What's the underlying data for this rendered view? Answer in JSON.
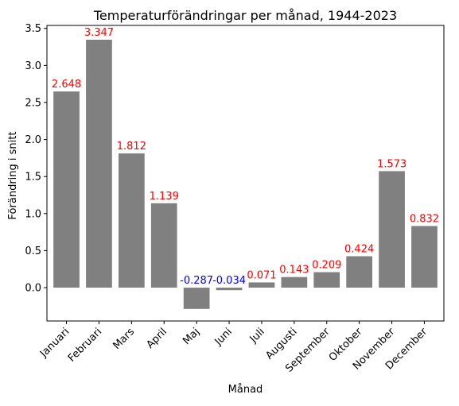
{
  "chart_data": {
    "type": "bar",
    "title": "Temperaturförändringar per månad, 1944-2023",
    "xlabel": "Månad",
    "ylabel": "Förändring i snitt",
    "categories": [
      "Januari",
      "Februari",
      "Mars",
      "April",
      "Maj",
      "Juni",
      "Juli",
      "Augusti",
      "September",
      "Oktober",
      "November",
      "December"
    ],
    "values": [
      2.648,
      3.347,
      1.812,
      1.139,
      -0.287,
      -0.034,
      0.071,
      0.143,
      0.209,
      0.424,
      1.573,
      0.832
    ],
    "data_labels": [
      "2.648",
      "3.347",
      "1.812",
      "1.139",
      "-0.287",
      "-0.034",
      "0.071",
      "0.143",
      "0.209",
      "0.424",
      "1.573",
      "0.832"
    ],
    "yticks": [
      0.0,
      0.5,
      1.0,
      1.5,
      2.0,
      2.5,
      3.0,
      3.5
    ],
    "ytick_labels": [
      "0.0",
      "0.5",
      "1.0",
      "1.5",
      "2.0",
      "2.5",
      "3.0",
      "3.5"
    ],
    "ylim": [
      -0.45,
      3.54
    ],
    "grid": false,
    "bar_color": "#808080",
    "positive_label_color": "#ff0000",
    "negative_label_color": "#0000ff",
    "axis_color": "#000000"
  }
}
